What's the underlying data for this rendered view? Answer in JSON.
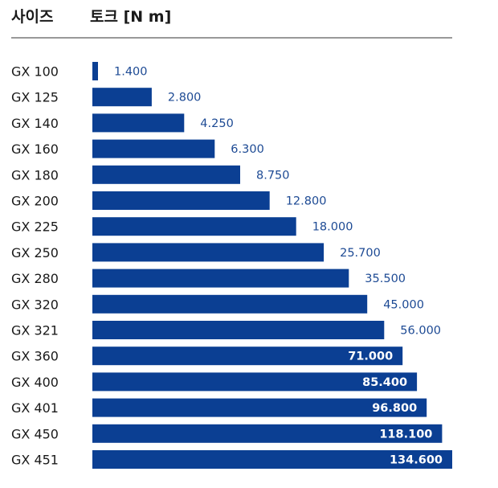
{
  "header": {
    "col_size": "사이즈",
    "col_torque": "토크 [N m]"
  },
  "colors": {
    "bar": "#0b3f93",
    "value_outside": "#1d4a94",
    "value_inside": "#ffffff",
    "rule": "#333333"
  },
  "chart_data": {
    "type": "bar",
    "orientation": "horizontal",
    "title": "",
    "xlabel": "토크 [N m]",
    "ylabel": "사이즈",
    "categories": [
      "GX 100",
      "GX 125",
      "GX 140",
      "GX 160",
      "GX 180",
      "GX 200",
      "GX 225",
      "GX 250",
      "GX 280",
      "GX 320",
      "GX 321",
      "GX 360",
      "GX 400",
      "GX 401",
      "GX 450",
      "GX 451"
    ],
    "values": [
      1400,
      2800,
      4250,
      6300,
      8750,
      12800,
      18000,
      25700,
      35500,
      45000,
      56000,
      71000,
      85400,
      96800,
      118100,
      134600
    ],
    "value_labels": [
      "1.400",
      "2.800",
      "4.250",
      "6.300",
      "8.750",
      "12.800",
      "18.000",
      "25.700",
      "35.500",
      "45.000",
      "56.000",
      "71.000",
      "85.400",
      "96.800",
      "118.100",
      "134.600"
    ],
    "scale": "log",
    "grid": false,
    "legend": "none"
  }
}
